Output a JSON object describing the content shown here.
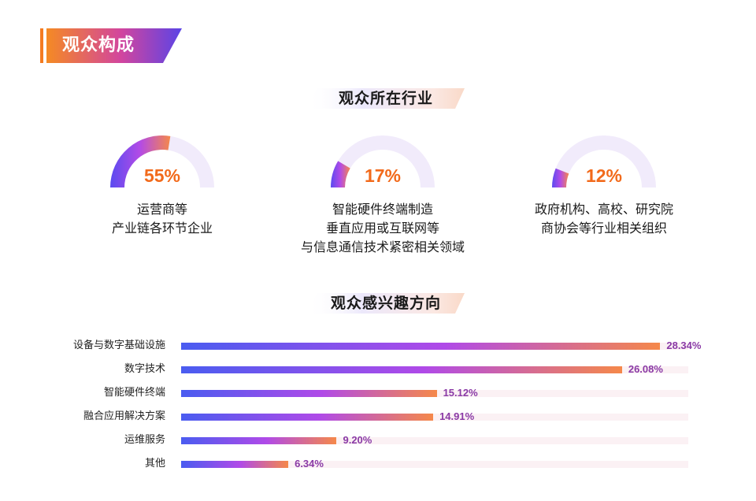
{
  "header": {
    "title": "观众构成"
  },
  "section_industry": {
    "title": "观众所在行业"
  },
  "section_interest": {
    "title": "观众感兴趣方向"
  },
  "colors": {
    "orange": "#f26a1b",
    "purple": "#8a3aa6",
    "blue": "#4a5cf0",
    "track": "#fbf1f4"
  },
  "chart_data": [
    {
      "type": "pie",
      "title": "观众所在行业",
      "slices": [
        {
          "value": 55,
          "label": "55%",
          "lines": [
            "运营商等",
            "产业链各环节企业"
          ]
        },
        {
          "value": 17,
          "label": "17%",
          "lines": [
            "智能硬件终端制造",
            "垂直应用或互联网等",
            "与信息通信技术紧密相关领域"
          ]
        },
        {
          "value": 12,
          "label": "12%",
          "lines": [
            "政府机构、高校、研究院",
            "商协会等行业相关组织"
          ]
        }
      ]
    },
    {
      "type": "bar",
      "title": "观众感兴趣方向",
      "categories": [
        "设备与数字基础设施",
        "数字技术",
        "智能硬件终端",
        "融合应用解决方案",
        "运维服务",
        "其他"
      ],
      "values": [
        28.34,
        26.08,
        15.12,
        14.91,
        9.2,
        6.34
      ],
      "value_labels": [
        "28.34%",
        "26.08%",
        "15.12%",
        "14.91%",
        "9.20%",
        "6.34%"
      ],
      "xlim": [
        0,
        30
      ]
    }
  ]
}
